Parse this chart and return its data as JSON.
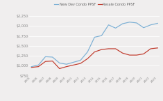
{
  "years": [
    2005,
    2006,
    2007,
    2008,
    2009,
    2010,
    2011,
    2012,
    2013,
    2014,
    2015,
    2016,
    2017,
    2018,
    2019,
    2020,
    2021,
    2022,
    2023
  ],
  "new_dev": [
    980,
    1020,
    1230,
    1220,
    1070,
    1040,
    1090,
    1140,
    1350,
    1720,
    1760,
    2030,
    1950,
    2060,
    2100,
    2080,
    1960,
    2030,
    2070
  ],
  "resale": [
    960,
    980,
    1110,
    1120,
    930,
    980,
    1020,
    1060,
    1180,
    1350,
    1410,
    1430,
    1430,
    1320,
    1270,
    1270,
    1300,
    1430,
    1450
  ],
  "new_dev_color": "#7bafd4",
  "resale_color": "#c0392b",
  "legend_new": "New Dev Condo PPSF",
  "legend_resale": "Resale Condo PPSF",
  "ylim_min": 750,
  "ylim_max": 2250,
  "yticks": [
    750,
    1000,
    1250,
    1500,
    1750,
    2000,
    2250
  ],
  "ytick_labels": [
    "$750",
    "$1,000",
    "$1,250",
    "$1,500",
    "$1,750",
    "$2,000",
    "$2,250"
  ],
  "bg_color": "#f0eeee"
}
